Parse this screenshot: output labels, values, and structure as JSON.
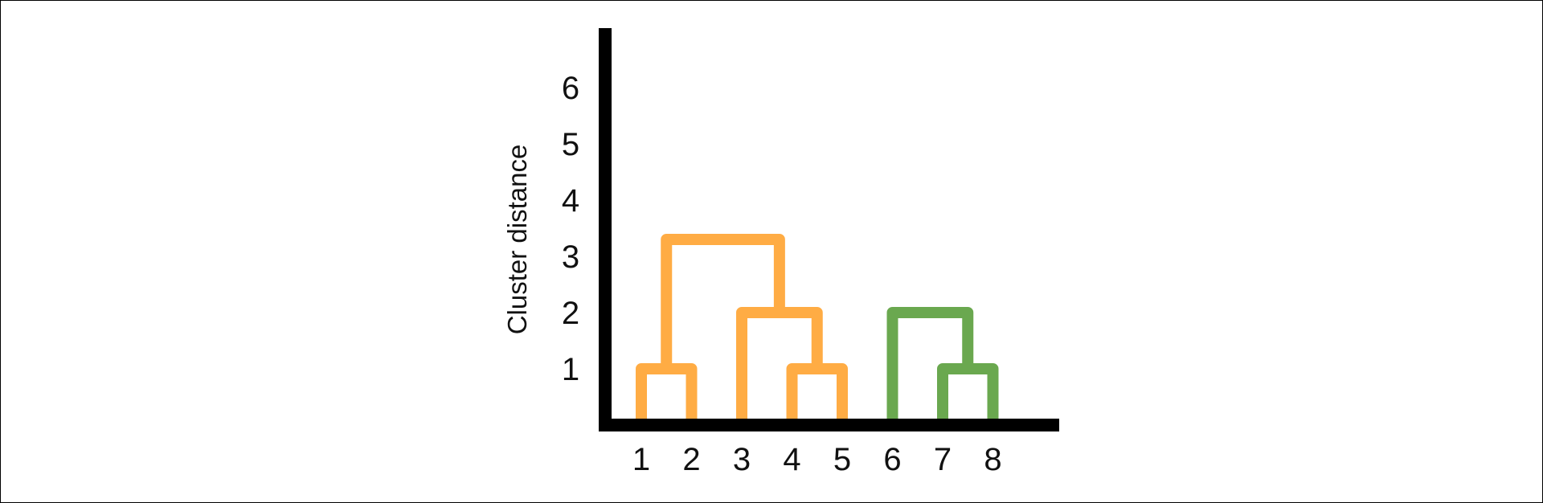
{
  "chart_data": {
    "type": "dendrogram",
    "title": "",
    "xlabel": "",
    "ylabel": "Cluster distance",
    "leaves": [
      "1",
      "2",
      "3",
      "4",
      "5",
      "6",
      "7",
      "8"
    ],
    "y_ticks": [
      "1",
      "2",
      "3",
      "4",
      "5",
      "6"
    ],
    "ylim": [
      0,
      7
    ],
    "merges": [
      {
        "left": "1",
        "right": "2",
        "height": 1,
        "color": "#FFAC44"
      },
      {
        "left": "4",
        "right": "5",
        "height": 1,
        "color": "#FFAC44"
      },
      {
        "left": "3",
        "right": "{4,5}",
        "height": 2,
        "color": "#FFAC44"
      },
      {
        "left": "{1,2}",
        "right": "{3,4,5}",
        "height": 3.3,
        "color": "#FFAC44"
      },
      {
        "left": "7",
        "right": "8",
        "height": 1,
        "color": "#6AA84F"
      },
      {
        "left": "6",
        "right": "{7,8}",
        "height": 2,
        "color": "#6AA84F"
      }
    ],
    "colors": {
      "cluster_a": "#FFAC44",
      "cluster_b": "#6AA84F",
      "axis": "#000000"
    }
  }
}
